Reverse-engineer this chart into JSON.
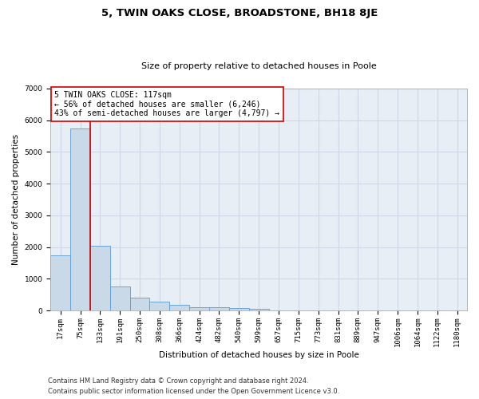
{
  "title": "5, TWIN OAKS CLOSE, BROADSTONE, BH18 8JE",
  "subtitle": "Size of property relative to detached houses in Poole",
  "xlabel": "Distribution of detached houses by size in Poole",
  "ylabel": "Number of detached properties",
  "footer_line1": "Contains HM Land Registry data © Crown copyright and database right 2024.",
  "footer_line2": "Contains public sector information licensed under the Open Government Licence v3.0.",
  "bin_labels": [
    "17sqm",
    "75sqm",
    "133sqm",
    "191sqm",
    "250sqm",
    "308sqm",
    "366sqm",
    "424sqm",
    "482sqm",
    "540sqm",
    "599sqm",
    "657sqm",
    "715sqm",
    "773sqm",
    "831sqm",
    "889sqm",
    "947sqm",
    "1006sqm",
    "1064sqm",
    "1122sqm",
    "1180sqm"
  ],
  "bar_values": [
    1750,
    5750,
    2050,
    750,
    400,
    275,
    175,
    100,
    100,
    80,
    50,
    0,
    0,
    0,
    0,
    0,
    0,
    0,
    0,
    0,
    0
  ],
  "bar_color": "#c9d9e8",
  "bar_edge_color": "#5b9bd5",
  "vline_color": "#cc0000",
  "annotation_line1": "5 TWIN OAKS CLOSE: 117sqm",
  "annotation_line2": "← 56% of detached houses are smaller (6,246)",
  "annotation_line3": "43% of semi-detached houses are larger (4,797) →",
  "annotation_box_color": "#ffffff",
  "annotation_box_edge": "#cc0000",
  "ylim": [
    0,
    7000
  ],
  "yticks": [
    0,
    1000,
    2000,
    3000,
    4000,
    5000,
    6000,
    7000
  ],
  "grid_color": "#d0d8e8",
  "bg_color": "#e8eef5",
  "title_fontsize": 9.5,
  "subtitle_fontsize": 8.0,
  "axis_label_fontsize": 7.5,
  "tick_fontsize": 6.5,
  "annotation_fontsize": 7.0,
  "footer_fontsize": 6.0
}
